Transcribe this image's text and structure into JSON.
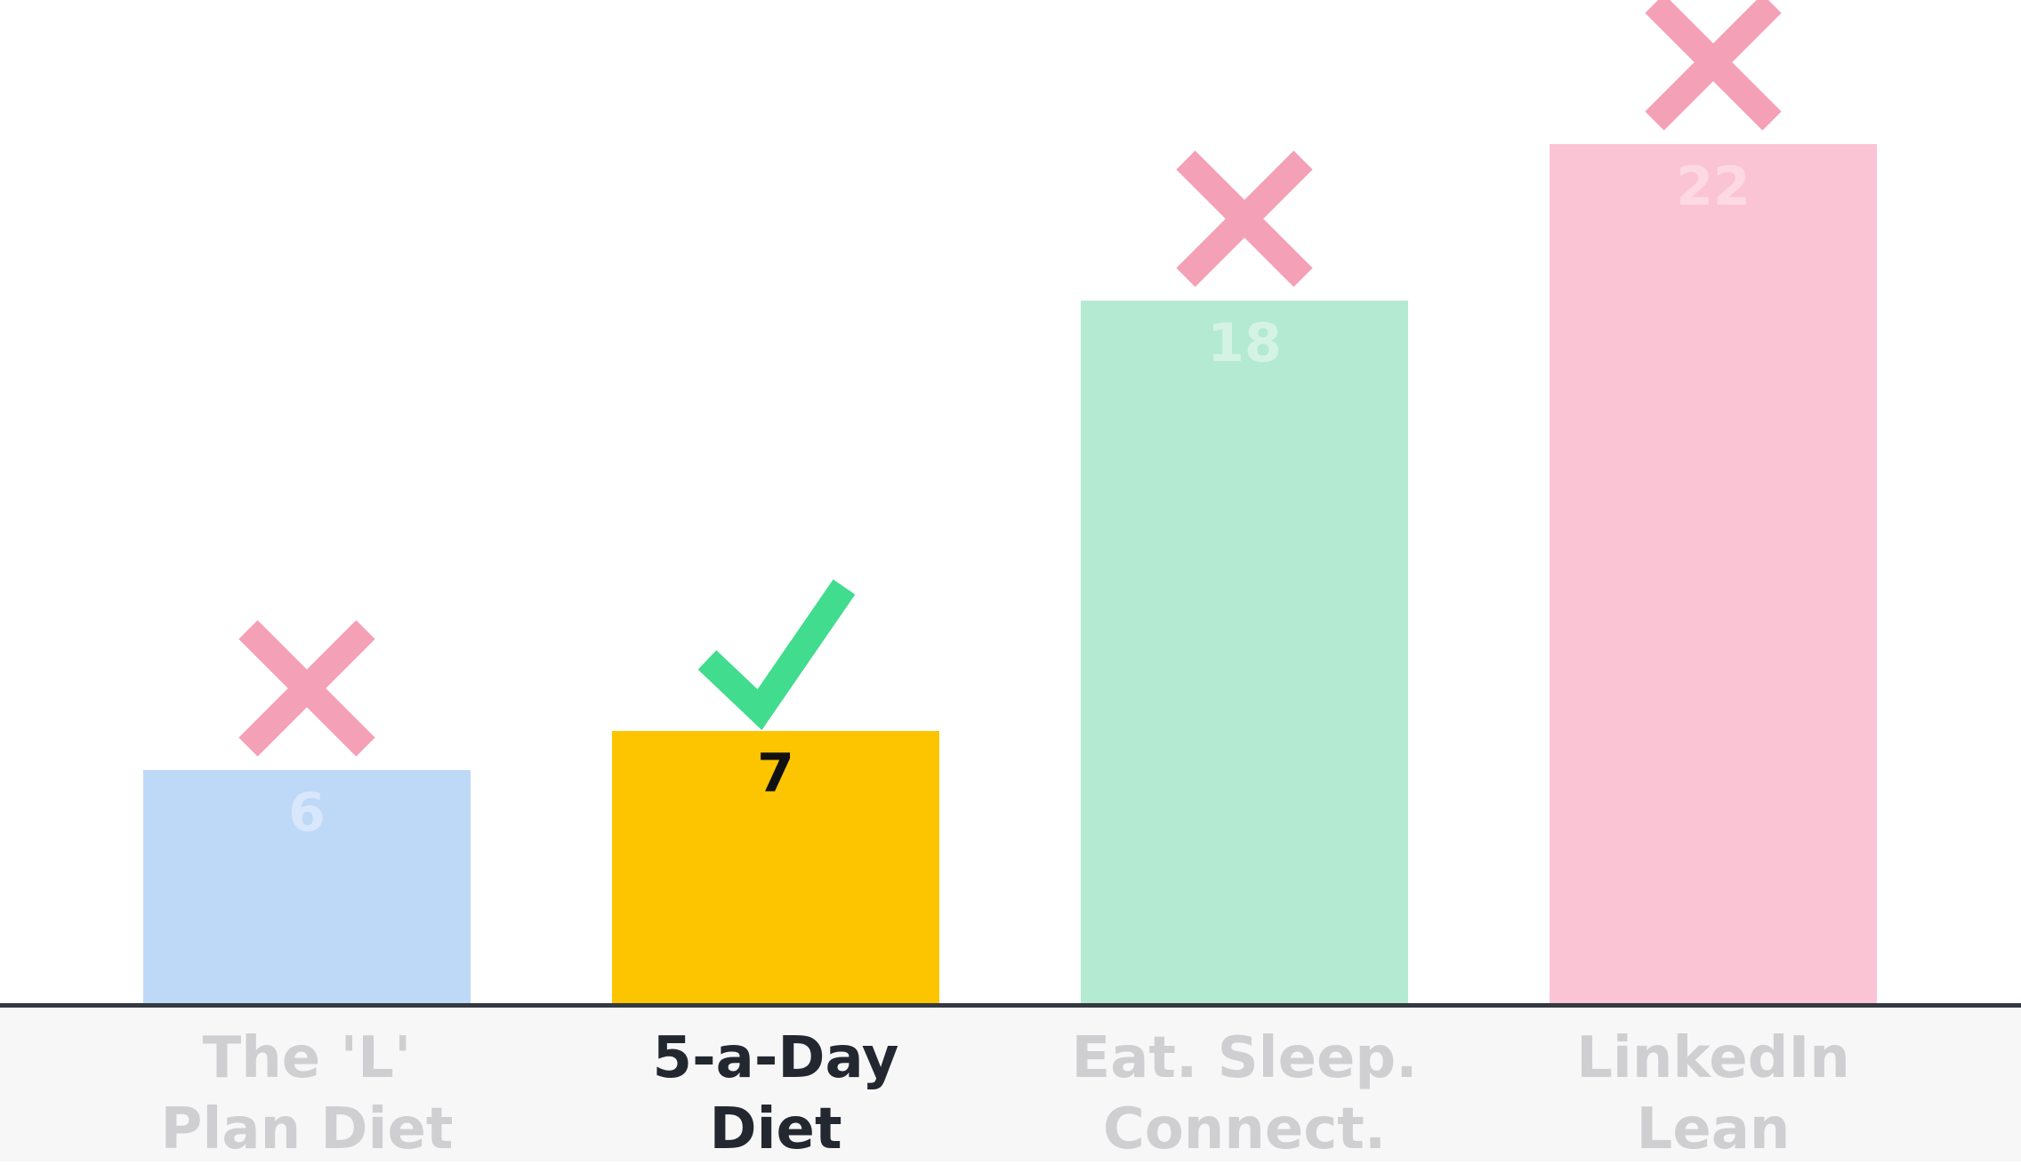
{
  "chart_data": {
    "type": "bar",
    "title": "",
    "xlabel": "",
    "ylabel": "",
    "ylim": [
      0,
      24
    ],
    "grid": false,
    "categories": [
      "The 'L'\nPlan Diet",
      "5-a-Day\nDiet",
      "Eat. Sleep.\nConnect.",
      "LinkedIn\nLean"
    ],
    "values": [
      6,
      7,
      18,
      22
    ],
    "value_labels": [
      "6",
      "7",
      "18",
      "22"
    ],
    "markers": [
      "cross",
      "check",
      "cross",
      "cross"
    ],
    "highlight_index": 1,
    "colors": {
      "bars": [
        "#bed8f7",
        "#fdc400",
        "#b4ead2",
        "#fbc4d5"
      ],
      "value_label": [
        "#d8e7fb",
        "#111111",
        "#d4f3e5",
        "#fdd9e4"
      ],
      "cross": "#f4a0b6",
      "check": "#41dc8e",
      "label_muted": "#cfcfd2",
      "label_highlight": "#232830"
    }
  }
}
